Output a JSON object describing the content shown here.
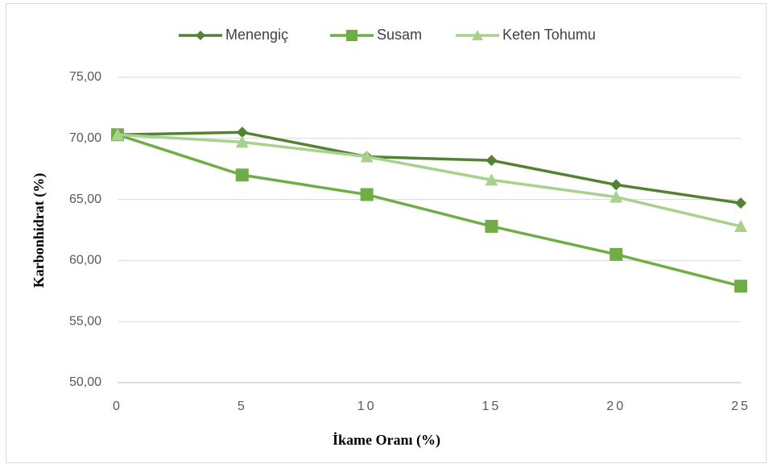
{
  "chart_data": {
    "type": "line",
    "x": [
      0,
      5,
      10,
      15,
      20,
      25
    ],
    "series": [
      {
        "name": "Menengiç",
        "color": "#548235",
        "marker": "diamond",
        "values": [
          70.3,
          70.5,
          68.5,
          68.2,
          66.2,
          64.7
        ]
      },
      {
        "name": "Susam",
        "color": "#70ad47",
        "marker": "square",
        "values": [
          70.3,
          67.0,
          65.4,
          62.8,
          60.5,
          57.9
        ]
      },
      {
        "name": "Keten Tohumu",
        "color": "#a9d18e",
        "marker": "triangle",
        "values": [
          70.3,
          69.7,
          68.5,
          66.6,
          65.2,
          62.8
        ]
      }
    ],
    "xlim": [
      0,
      25
    ],
    "xticks": [
      0,
      5,
      10,
      15,
      20,
      25
    ],
    "ylim": [
      50,
      75
    ],
    "yticks": [
      {
        "value": 50,
        "label": "50,00"
      },
      {
        "value": 55,
        "label": "55,00"
      },
      {
        "value": 60,
        "label": "60,00"
      },
      {
        "value": 65,
        "label": "65,00"
      },
      {
        "value": 70,
        "label": "70,00"
      },
      {
        "value": 75,
        "label": "75,00"
      }
    ],
    "grid": true,
    "legend": "top",
    "xlabel": "İkame Oranı (%)",
    "ylabel": "Karbonhidrat (%)"
  }
}
